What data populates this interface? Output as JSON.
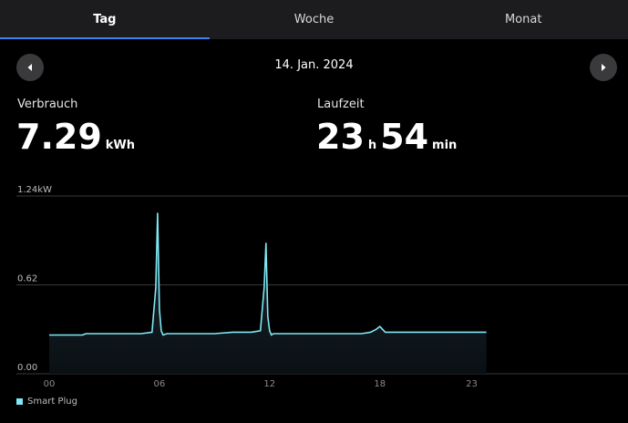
{
  "tabs": [
    {
      "label": "Tag",
      "active": true
    },
    {
      "label": "Woche",
      "active": false
    },
    {
      "label": "Monat",
      "active": false
    }
  ],
  "date": "14. Jan. 2024",
  "icons": {
    "prev": "chevron-left-icon",
    "next": "chevron-right-icon"
  },
  "consumption": {
    "label": "Verbrauch",
    "value": "7.29",
    "unit": "kWh"
  },
  "runtime": {
    "label": "Laufzeit",
    "hours": "23",
    "hours_unit": "h",
    "minutes": "54",
    "minutes_unit": "min"
  },
  "colors": {
    "line": "#7ee8f5",
    "tab_accent": "#3b82f6",
    "tab_bar": "#1c1c1e",
    "button": "#3a3a3c"
  },
  "chart_data": {
    "type": "area",
    "title": "",
    "xlabel": "",
    "ylabel": "",
    "ylim": [
      0,
      1.24
    ],
    "xlim": [
      0,
      30
    ],
    "x_ticks": [
      {
        "value": 0,
        "label": "00"
      },
      {
        "value": 6,
        "label": "06"
      },
      {
        "value": 12,
        "label": "12"
      },
      {
        "value": 18,
        "label": "18"
      },
      {
        "value": 23,
        "label": "23"
      }
    ],
    "y_ticks": [
      {
        "value": 1.24,
        "label": "1.24kW"
      },
      {
        "value": 0.62,
        "label": "0.62"
      },
      {
        "value": 0,
        "label": "0.00"
      }
    ],
    "grid": true,
    "legend": "bottom-left",
    "series": [
      {
        "name": "Smart Plug",
        "x": [
          0,
          1,
          1.8,
          2,
          3,
          4,
          5,
          5.6,
          5.8,
          5.9,
          6.0,
          6.1,
          6.2,
          6.4,
          6.6,
          7,
          8,
          9,
          10,
          10.5,
          11,
          11.5,
          11.7,
          11.8,
          11.9,
          12.0,
          12.1,
          12.2,
          12.5,
          13,
          14,
          15,
          16,
          17,
          17.5,
          17.8,
          18.0,
          18.3,
          19,
          20,
          21,
          22,
          23,
          23.8
        ],
        "values": [
          0.27,
          0.27,
          0.27,
          0.28,
          0.28,
          0.28,
          0.28,
          0.29,
          0.6,
          1.12,
          0.45,
          0.3,
          0.27,
          0.28,
          0.28,
          0.28,
          0.28,
          0.28,
          0.29,
          0.29,
          0.29,
          0.3,
          0.6,
          0.91,
          0.4,
          0.3,
          0.27,
          0.28,
          0.28,
          0.28,
          0.28,
          0.28,
          0.28,
          0.28,
          0.29,
          0.31,
          0.33,
          0.29,
          0.29,
          0.29,
          0.29,
          0.29,
          0.29,
          0.29
        ]
      }
    ]
  }
}
